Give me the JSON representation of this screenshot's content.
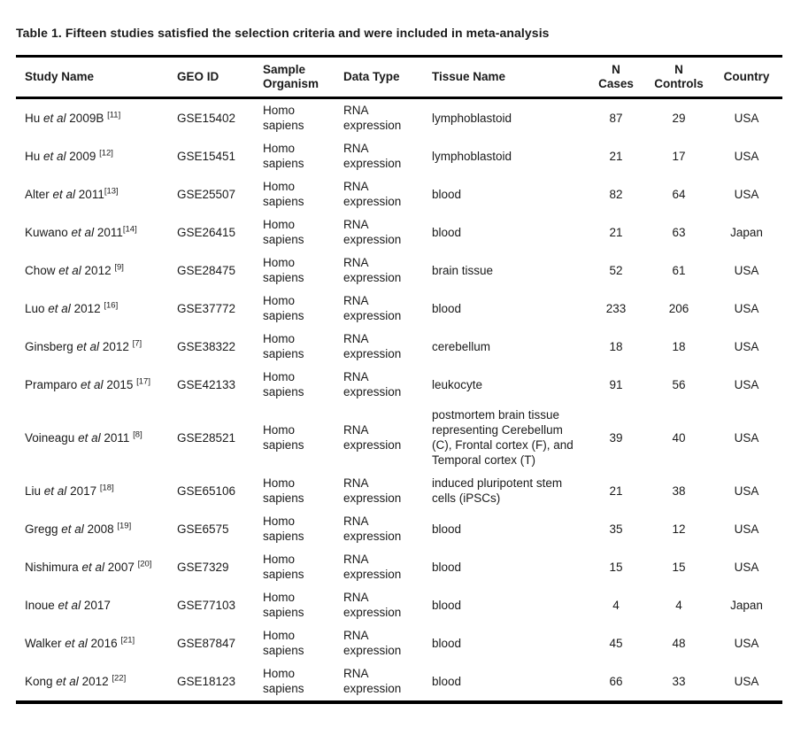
{
  "title": "Table 1. Fifteen studies satisfied the selection criteria and were included in meta-analysis",
  "colors": {
    "text": "#1a1a1a",
    "rule": "#000000",
    "background": "#ffffff"
  },
  "table": {
    "headers": [
      {
        "id": "study",
        "lines": [
          "Study Name"
        ],
        "align": "left"
      },
      {
        "id": "geo",
        "lines": [
          "GEO ID"
        ],
        "align": "left"
      },
      {
        "id": "organism",
        "lines": [
          "Sample",
          "Organism"
        ],
        "align": "left"
      },
      {
        "id": "datatype",
        "lines": [
          "Data Type"
        ],
        "align": "left"
      },
      {
        "id": "tissue",
        "lines": [
          "Tissue Name"
        ],
        "align": "left"
      },
      {
        "id": "ncases",
        "lines": [
          "N",
          "Cases"
        ],
        "align": "center"
      },
      {
        "id": "ncontrols",
        "lines": [
          "N",
          "Controls"
        ],
        "align": "center"
      },
      {
        "id": "country",
        "lines": [
          "Country"
        ],
        "align": "center"
      }
    ],
    "rows": [
      {
        "study_author": "Hu ",
        "study_etal": "et al",
        "study_rest": " 2009B ",
        "study_ref": "[11]",
        "geo_id": "GSE15402",
        "organism": "Homo sapiens",
        "data_type": "RNA expression",
        "tissue": "lymphoblastoid",
        "n_cases": "87",
        "n_controls": "29",
        "country": "USA"
      },
      {
        "study_author": "Hu ",
        "study_etal": "et al",
        "study_rest": " 2009 ",
        "study_ref": "[12]",
        "geo_id": "GSE15451",
        "organism": "Homo sapiens",
        "data_type": "RNA expression",
        "tissue": "lymphoblastoid",
        "n_cases": "21",
        "n_controls": "17",
        "country": "USA"
      },
      {
        "study_author": "Alter ",
        "study_etal": "et al",
        "study_rest": " 2011",
        "study_ref": "[13]",
        "geo_id": "GSE25507",
        "organism": "Homo sapiens",
        "data_type": "RNA expression",
        "tissue": "blood",
        "n_cases": "82",
        "n_controls": "64",
        "country": "USA"
      },
      {
        "study_author": "Kuwano ",
        "study_etal": "et al",
        "study_rest": " 2011",
        "study_ref": "[14]",
        "geo_id": "GSE26415",
        "organism": "Homo sapiens",
        "data_type": "RNA expression",
        "tissue": "blood",
        "n_cases": "21",
        "n_controls": "63",
        "country": "Japan"
      },
      {
        "study_author": "Chow ",
        "study_etal": "et al",
        "study_rest": " 2012 ",
        "study_ref": "[9]",
        "geo_id": "GSE28475",
        "organism": "Homo sapiens",
        "data_type": "RNA expression",
        "tissue": "brain tissue",
        "n_cases": "52",
        "n_controls": "61",
        "country": "USA"
      },
      {
        "study_author": "Luo ",
        "study_etal": "et al",
        "study_rest": " 2012 ",
        "study_ref": "[16]",
        "geo_id": "GSE37772",
        "organism": "Homo sapiens",
        "data_type": "RNA expression",
        "tissue": "blood",
        "n_cases": "233",
        "n_controls": "206",
        "country": "USA"
      },
      {
        "study_author": "Ginsberg ",
        "study_etal": "et al",
        "study_rest": " 2012 ",
        "study_ref": "[7]",
        "geo_id": "GSE38322",
        "organism": "Homo sapiens",
        "data_type": "RNA expression",
        "tissue": "cerebellum",
        "n_cases": "18",
        "n_controls": "18",
        "country": "USA"
      },
      {
        "study_author": "Pramparo ",
        "study_etal": "et al",
        "study_rest": " 2015 ",
        "study_ref": "[17]",
        "geo_id": "GSE42133",
        "organism": "Homo sapiens",
        "data_type": "RNA expression",
        "tissue": "leukocyte",
        "n_cases": "91",
        "n_controls": "56",
        "country": "USA"
      },
      {
        "study_author": "Voineagu ",
        "study_etal": "et al",
        "study_rest": " 2011 ",
        "study_ref": "[8]",
        "geo_id": "GSE28521",
        "organism": "Homo sapiens",
        "data_type": "RNA expression",
        "tissue": "postmortem brain tissue representing Cerebellum (C), Frontal cortex (F), and Temporal cortex (T)",
        "n_cases": "39",
        "n_controls": "40",
        "country": "USA"
      },
      {
        "study_author": "Liu ",
        "study_etal": "et al",
        "study_rest": " 2017 ",
        "study_ref": "[18]",
        "geo_id": "GSE65106",
        "organism": "Homo sapiens",
        "data_type": "RNA expression",
        "tissue": "induced pluripotent stem cells (iPSCs)",
        "n_cases": "21",
        "n_controls": "38",
        "country": "USA"
      },
      {
        "study_author": "Gregg ",
        "study_etal": "et al",
        "study_rest": " 2008 ",
        "study_ref": "[19]",
        "geo_id": "GSE6575",
        "organism": "Homo sapiens",
        "data_type": "RNA expression",
        "tissue": "blood",
        "n_cases": "35",
        "n_controls": "12",
        "country": "USA"
      },
      {
        "study_author": "Nishimura ",
        "study_etal": "et al",
        "study_rest": " 2007 ",
        "study_ref": "[20]",
        "geo_id": "GSE7329",
        "organism": "Homo sapiens",
        "data_type": "RNA expression",
        "tissue": "blood",
        "n_cases": "15",
        "n_controls": "15",
        "country": "USA"
      },
      {
        "study_author": "Inoue ",
        "study_etal": "et al",
        "study_rest": " 2017",
        "study_ref": "",
        "geo_id": "GSE77103",
        "organism": "Homo sapiens",
        "data_type": "RNA expression",
        "tissue": "blood",
        "n_cases": "4",
        "n_controls": "4",
        "country": "Japan"
      },
      {
        "study_author": "Walker ",
        "study_etal": "et al",
        "study_rest": " 2016 ",
        "study_ref": "[21]",
        "geo_id": "GSE87847",
        "organism": "Homo sapiens",
        "data_type": "RNA expression",
        "tissue": "blood",
        "n_cases": "45",
        "n_controls": "48",
        "country": "USA"
      },
      {
        "study_author": "Kong ",
        "study_etal": "et al",
        "study_rest": " 2012 ",
        "study_ref": "[22]",
        "geo_id": "GSE18123",
        "organism": "Homo sapiens",
        "data_type": "RNA expression",
        "tissue": "blood",
        "n_cases": "66",
        "n_controls": "33",
        "country": "USA"
      }
    ]
  }
}
